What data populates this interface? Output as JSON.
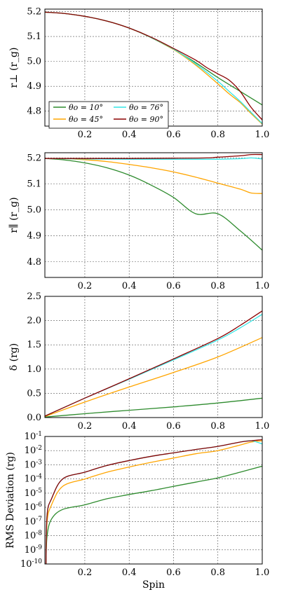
{
  "chart_data": [
    {
      "type": "line",
      "ylabel": "r_⊥ (r_g)",
      "xlim": [
        0.02,
        1.0
      ],
      "ylim": [
        4.74,
        5.21
      ],
      "xticks": [
        0.2,
        0.4,
        0.6,
        0.8,
        1.0
      ],
      "yticks": [
        4.8,
        4.9,
        5.0,
        5.1,
        5.2
      ],
      "grid": true,
      "legend": "bottom-left",
      "series": [
        {
          "name": "θ_o = 10°",
          "color": "#2e8b2e",
          "x": [
            0.02,
            0.1,
            0.2,
            0.3,
            0.4,
            0.5,
            0.6,
            0.7,
            0.8,
            0.9,
            1.0
          ],
          "y": [
            5.198,
            5.193,
            5.181,
            5.162,
            5.134,
            5.095,
            5.048,
            4.995,
            4.935,
            4.88,
            4.825
          ]
        },
        {
          "name": "θ_o = 45°",
          "color": "#ffa500",
          "x": [
            0.02,
            0.1,
            0.2,
            0.3,
            0.4,
            0.5,
            0.6,
            0.7,
            0.8,
            0.85,
            0.9,
            0.95,
            1.0
          ],
          "y": [
            5.198,
            5.193,
            5.181,
            5.162,
            5.134,
            5.096,
            5.048,
            4.985,
            4.91,
            4.87,
            4.835,
            4.79,
            4.748
          ]
        },
        {
          "name": "θ_o = 76°",
          "color": "#33e6e6",
          "x": [
            0.02,
            0.1,
            0.2,
            0.3,
            0.4,
            0.5,
            0.6,
            0.7,
            0.8,
            0.85,
            0.9,
            0.95,
            1.0
          ],
          "y": [
            5.198,
            5.193,
            5.181,
            5.162,
            5.134,
            5.096,
            5.05,
            4.99,
            4.92,
            4.88,
            4.84,
            4.795,
            4.75
          ]
        },
        {
          "name": "θ_o = 90°",
          "color": "#8b0000",
          "x": [
            0.02,
            0.1,
            0.2,
            0.3,
            0.4,
            0.5,
            0.6,
            0.7,
            0.75,
            0.8,
            0.85,
            0.9,
            0.95,
            1.0
          ],
          "y": [
            5.198,
            5.193,
            5.181,
            5.162,
            5.134,
            5.097,
            5.052,
            5.005,
            4.975,
            4.95,
            4.925,
            4.88,
            4.815,
            4.765
          ]
        }
      ]
    },
    {
      "type": "line",
      "ylabel": "r_∥ (r_g)",
      "xlim": [
        0.02,
        1.0
      ],
      "ylim": [
        4.74,
        5.22
      ],
      "xticks": [
        0.2,
        0.4,
        0.6,
        0.8,
        1.0
      ],
      "yticks": [
        4.8,
        4.9,
        5.0,
        5.1,
        5.2
      ],
      "grid": true,
      "series": [
        {
          "name": "θ_o = 10°",
          "color": "#2e8b2e",
          "x": [
            0.02,
            0.1,
            0.2,
            0.3,
            0.4,
            0.5,
            0.6,
            0.7,
            0.8,
            0.9,
            1.0
          ],
          "y": [
            5.198,
            5.193,
            5.181,
            5.162,
            5.134,
            5.095,
            5.048,
            4.985,
            4.985,
            4.92,
            4.845
          ]
        },
        {
          "name": "θ_o = 45°",
          "color": "#ffa500",
          "x": [
            0.02,
            0.1,
            0.2,
            0.3,
            0.4,
            0.5,
            0.6,
            0.7,
            0.8,
            0.9,
            0.95,
            1.0
          ],
          "y": [
            5.198,
            5.197,
            5.193,
            5.186,
            5.175,
            5.162,
            5.146,
            5.126,
            5.103,
            5.08,
            5.065,
            5.063
          ]
        },
        {
          "name": "θ_o = 76°",
          "color": "#33e6e6",
          "x": [
            0.02,
            0.2,
            0.4,
            0.6,
            0.8,
            0.9,
            0.95,
            1.0
          ],
          "y": [
            5.198,
            5.196,
            5.195,
            5.195,
            5.195,
            5.197,
            5.2,
            5.196
          ]
        },
        {
          "name": "θ_o = 90°",
          "color": "#8b0000",
          "x": [
            0.02,
            0.2,
            0.4,
            0.6,
            0.75,
            0.8,
            0.9,
            0.95,
            1.0
          ],
          "y": [
            5.198,
            5.198,
            5.198,
            5.199,
            5.2,
            5.203,
            5.208,
            5.213,
            5.213
          ]
        }
      ]
    },
    {
      "type": "line",
      "ylabel": "δ (r_g)",
      "xlim": [
        0.02,
        1.0
      ],
      "ylim": [
        0.0,
        2.5
      ],
      "xticks": [
        0.2,
        0.4,
        0.6,
        0.8,
        1.0
      ],
      "yticks": [
        0.0,
        0.5,
        1.0,
        1.5,
        2.0,
        2.5
      ],
      "grid": true,
      "series": [
        {
          "name": "θ_o = 10°",
          "color": "#2e8b2e",
          "x": [
            0.02,
            0.2,
            0.4,
            0.6,
            0.8,
            1.0
          ],
          "y": [
            0.01,
            0.08,
            0.15,
            0.22,
            0.3,
            0.4
          ]
        },
        {
          "name": "θ_o = 45°",
          "color": "#ffa500",
          "x": [
            0.02,
            0.2,
            0.4,
            0.6,
            0.8,
            1.0
          ],
          "y": [
            0.02,
            0.32,
            0.63,
            0.93,
            1.25,
            1.65
          ]
        },
        {
          "name": "θ_o = 76°",
          "color": "#33e6e6",
          "x": [
            0.02,
            0.2,
            0.4,
            0.6,
            0.8,
            0.9,
            1.0
          ],
          "y": [
            0.03,
            0.4,
            0.79,
            1.19,
            1.6,
            1.85,
            2.13
          ]
        },
        {
          "name": "θ_o = 90°",
          "color": "#8b0000",
          "x": [
            0.02,
            0.2,
            0.4,
            0.6,
            0.8,
            0.9,
            1.0
          ],
          "y": [
            0.03,
            0.4,
            0.8,
            1.21,
            1.63,
            1.9,
            2.2
          ]
        }
      ]
    },
    {
      "type": "line",
      "xlabel": "Spin",
      "ylabel": "RMS Deviation (r_g)",
      "xlim": [
        0.02,
        1.0
      ],
      "ylim": [
        1e-10,
        0.1
      ],
      "yscale": "log",
      "xticks": [
        0.2,
        0.4,
        0.6,
        0.8,
        1.0
      ],
      "ytick_exponents": [
        -10,
        -9,
        -8,
        -7,
        -6,
        -5,
        -4,
        -3,
        -2,
        -1
      ],
      "grid": true,
      "series": [
        {
          "name": "θ_o = 10°",
          "color": "#2e8b2e",
          "x": [
            0.025,
            0.03,
            0.05,
            0.1,
            0.2,
            0.3,
            0.4,
            0.5,
            0.6,
            0.7,
            0.8,
            0.9,
            1.0
          ],
          "y": [
            1e-10,
            1e-08,
            1.5e-07,
            7e-07,
            1.5e-06,
            4e-06,
            8e-06,
            1.5e-05,
            3e-05,
            6e-05,
            0.00012,
            0.0003,
            0.0008
          ]
        },
        {
          "name": "θ_o = 45°",
          "color": "#ffa500",
          "x": [
            0.025,
            0.03,
            0.05,
            0.1,
            0.2,
            0.3,
            0.4,
            0.5,
            0.6,
            0.7,
            0.8,
            0.9,
            0.95,
            1.0
          ],
          "y": [
            1e-10,
            1e-07,
            1.5e-06,
            3e-05,
            0.0001,
            0.0003,
            0.0007,
            0.0015,
            0.003,
            0.006,
            0.01,
            0.025,
            0.04,
            0.05
          ]
        },
        {
          "name": "θ_o = 76°",
          "color": "#33e6e6",
          "x": [
            0.025,
            0.03,
            0.05,
            0.1,
            0.2,
            0.3,
            0.4,
            0.5,
            0.6,
            0.7,
            0.8,
            0.9,
            0.95,
            1.0
          ],
          "y": [
            1e-10,
            3e-07,
            4e-06,
            0.0001,
            0.0003,
            0.0009,
            0.002,
            0.004,
            0.007,
            0.012,
            0.02,
            0.04,
            0.05,
            0.03
          ]
        },
        {
          "name": "θ_o = 90°",
          "color": "#8b0000",
          "x": [
            0.025,
            0.03,
            0.05,
            0.1,
            0.2,
            0.3,
            0.4,
            0.5,
            0.6,
            0.7,
            0.8,
            0.9,
            0.95,
            1.0
          ],
          "y": [
            1e-10,
            3e-07,
            4e-06,
            0.0001,
            0.0003,
            0.0009,
            0.002,
            0.004,
            0.007,
            0.012,
            0.02,
            0.04,
            0.05,
            0.06
          ]
        }
      ]
    }
  ]
}
